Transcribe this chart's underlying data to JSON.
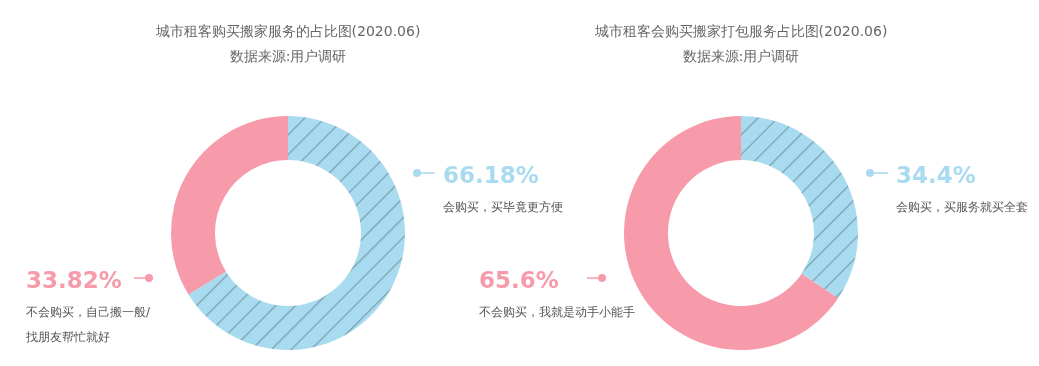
{
  "chart_data": [
    {
      "type": "donut",
      "title": "城市租客购买搬家服务的占比图(2020.06)",
      "subtitle": "数据来源:用户调研",
      "categories": [
        "会购买，买毕竟更方便",
        "不会购买，自己搬一般/找朋友帮忙就好"
      ],
      "values": [
        66.18,
        33.82
      ],
      "colors": [
        "#a9dbf0",
        "#f79bab"
      ],
      "value_labels": [
        "66.18%",
        "33.82%"
      ]
    },
    {
      "type": "donut",
      "title": "城市租客会购买搬家打包服务占比图(2020.06)",
      "subtitle": "数据来源:用户调研",
      "categories": [
        "会购买，买服务就买全套",
        "不会购买，我就是动手小能手"
      ],
      "values": [
        34.4,
        65.6
      ],
      "colors": [
        "#a9dbf0",
        "#f79bab"
      ],
      "value_labels": [
        "34.4%",
        "65.6%"
      ]
    }
  ]
}
